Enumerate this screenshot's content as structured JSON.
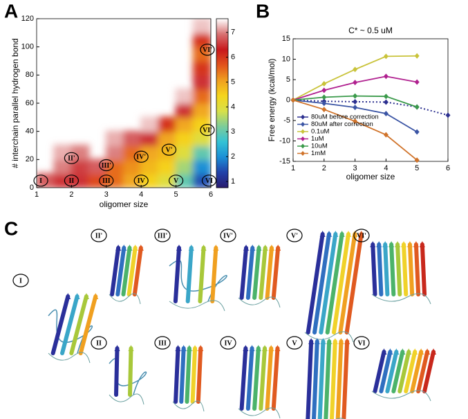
{
  "panel_labels": [
    "A",
    "B",
    "C"
  ],
  "chart_data": [
    {
      "type": "heatmap",
      "xlabel": "oligomer size",
      "ylabel": "# interchain parallel  hydrogen bond",
      "xlim": [
        1,
        6
      ],
      "ylim": [
        0,
        120
      ],
      "xticks": [
        1,
        2,
        3,
        4,
        5,
        6
      ],
      "yticks": [
        0,
        20,
        40,
        60,
        80,
        100,
        120
      ],
      "x_edges": [
        1,
        1.5,
        2,
        2.5,
        3,
        3.5,
        4,
        4.5,
        5,
        5.5,
        6
      ],
      "y_edges": [
        0,
        10,
        20,
        30,
        40,
        50,
        60,
        70,
        80,
        90,
        100,
        110,
        120
      ],
      "z": [
        [
          6.8,
          6.5,
          6.5,
          5.8,
          5.5,
          5,
          4.5,
          4,
          3,
          1.5
        ],
        [
          null,
          7,
          6.6,
          6.8,
          5.5,
          5.2,
          4.8,
          4.5,
          3.5,
          2
        ],
        [
          null,
          7.2,
          7,
          null,
          7,
          5.5,
          5,
          4.8,
          4,
          3
        ],
        [
          null,
          null,
          null,
          null,
          7.2,
          6.8,
          6.5,
          5,
          4.5,
          4
        ],
        [
          null,
          null,
          null,
          null,
          null,
          null,
          7.3,
          6,
          5,
          4.5
        ],
        [
          null,
          null,
          null,
          null,
          null,
          null,
          null,
          null,
          6.5,
          5
        ],
        [
          null,
          null,
          null,
          null,
          null,
          null,
          null,
          null,
          7.3,
          5.5
        ],
        [
          null,
          null,
          null,
          null,
          null,
          null,
          null,
          null,
          null,
          6.5
        ],
        [
          null,
          null,
          null,
          null,
          null,
          null,
          null,
          null,
          null,
          6
        ],
        [
          null,
          null,
          null,
          null,
          null,
          null,
          null,
          null,
          null,
          5.5
        ],
        [
          null,
          null,
          null,
          null,
          null,
          null,
          null,
          null,
          null,
          6
        ],
        [
          null,
          null,
          null,
          null,
          null,
          null,
          null,
          null,
          null,
          7.3
        ]
      ],
      "clim": [
        0.75,
        7.55
      ],
      "cticks": [
        1,
        2,
        3,
        4,
        5,
        6,
        7
      ],
      "colormap": [
        "#2a1b6e",
        "#2240a8",
        "#1b8fd6",
        "#34c2d5",
        "#7ccc9a",
        "#d7e04a",
        "#f5d51c",
        "#f0a020",
        "#e2541c",
        "#c8181c",
        "#d87070",
        "#ffffff"
      ],
      "annotations": [
        {
          "text": "I",
          "x": 1.12,
          "y": 5
        },
        {
          "text": "II",
          "x": 2,
          "y": 5
        },
        {
          "text": "III",
          "x": 3,
          "y": 5
        },
        {
          "text": "IV",
          "x": 4,
          "y": 5
        },
        {
          "text": "V",
          "x": 5,
          "y": 5
        },
        {
          "text": "VI",
          "x": 5.95,
          "y": 5
        },
        {
          "text": "II'",
          "x": 2,
          "y": 21
        },
        {
          "text": "III'",
          "x": 3,
          "y": 16
        },
        {
          "text": "IV'",
          "x": 4,
          "y": 22
        },
        {
          "text": "V'",
          "x": 4.8,
          "y": 27
        },
        {
          "text": "VI'",
          "x": 5.9,
          "y": 41
        },
        {
          "text": "VI'",
          "x": 5.9,
          "y": 98
        }
      ]
    },
    {
      "type": "line",
      "title": "C* ~ 0.5 uM",
      "xlabel": "oligomer size",
      "ylabel": "Free energy (kcal/mol)",
      "xlim": [
        1,
        6
      ],
      "ylim": [
        -15,
        15
      ],
      "xticks": [
        1,
        2,
        3,
        4,
        5,
        6
      ],
      "yticks": [
        -15,
        -10,
        -5,
        0,
        5,
        10,
        15
      ],
      "x": [
        1,
        2,
        3,
        4,
        5,
        6
      ],
      "legend": "lower left",
      "series": [
        {
          "name": "80uM before correction",
          "color": "#2b2f8f",
          "linestyle": "dotted",
          "values": [
            0,
            -0.3,
            -0.4,
            -0.5,
            -1.7,
            -3.7
          ]
        },
        {
          "name": "80uM after correction",
          "color": "#3a54a4",
          "linestyle": "solid",
          "values": [
            0,
            -0.8,
            -1.8,
            -3.3,
            -7.8,
            null
          ]
        },
        {
          "name": "0.1uM",
          "color": "#c9c33a",
          "linestyle": "solid",
          "values": [
            0,
            4,
            7.5,
            10.7,
            10.8,
            null
          ]
        },
        {
          "name": "1uM",
          "color": "#b0208f",
          "linestyle": "solid",
          "values": [
            0,
            2.4,
            4.3,
            5.8,
            4.4,
            null
          ]
        },
        {
          "name": "10uM",
          "color": "#3a9a4a",
          "linestyle": "solid",
          "values": [
            0,
            0.7,
            1,
            0.9,
            -1.7,
            null
          ]
        },
        {
          "name": "1mM",
          "color": "#d0732a",
          "linestyle": "solid",
          "values": [
            0,
            -2.3,
            -5.2,
            -8.5,
            -14.7,
            null
          ]
        }
      ]
    }
  ],
  "structures": {
    "labels": [
      "I",
      "II'",
      "III'",
      "IV'",
      "V'",
      "VI'",
      "II",
      "III",
      "IV",
      "V",
      "VI"
    ]
  }
}
